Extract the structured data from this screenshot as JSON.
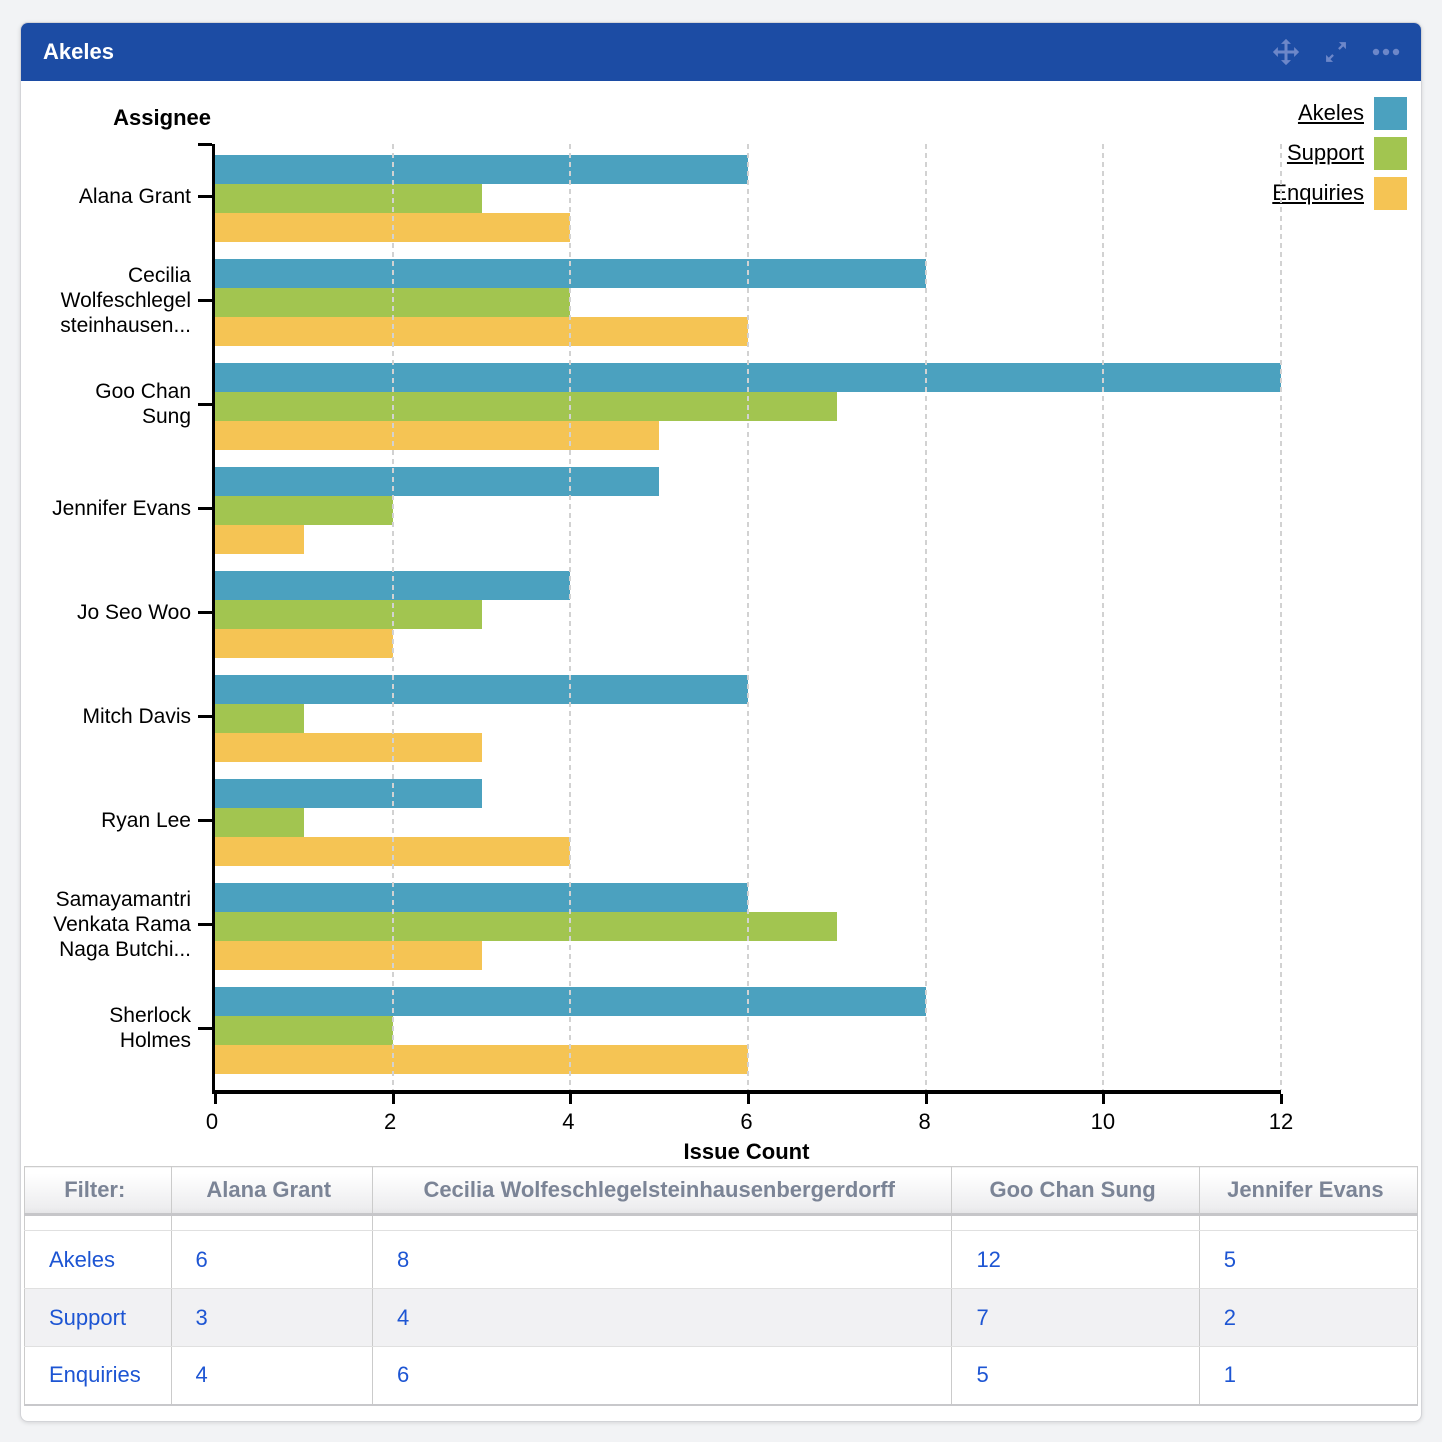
{
  "gadget": {
    "title": "Akeles",
    "header_color": "#1c4ca4",
    "toolbar_icons": [
      "move-icon",
      "expand-icon",
      "ellipsis-icon"
    ]
  },
  "chart_data": {
    "type": "bar",
    "orientation": "horizontal",
    "title": "Akeles",
    "ylabel": "Assignee",
    "xlabel": "Issue Count",
    "xlim": [
      0,
      12
    ],
    "xticks": [
      0,
      2,
      4,
      6,
      8,
      10,
      12
    ],
    "grid": true,
    "legend_position": "top-right",
    "categories": [
      "Alana Grant",
      "Cecilia Wolfeschlegel steinhausen...",
      "Goo Chan Sung",
      "Jennifer Evans",
      "Jo Seo Woo",
      "Mitch Davis",
      "Ryan Lee",
      "Samayamantri Venkata Rama Naga Butchi...",
      "Sherlock Holmes"
    ],
    "category_lines": [
      [
        "Alana Grant"
      ],
      [
        "Cecilia",
        "Wolfeschlegel",
        "steinhausen..."
      ],
      [
        "Goo Chan",
        "Sung"
      ],
      [
        "Jennifer Evans"
      ],
      [
        "Jo Seo Woo"
      ],
      [
        "Mitch Davis"
      ],
      [
        "Ryan Lee"
      ],
      [
        "Samayamantri",
        "Venkata Rama",
        "Naga Butchi..."
      ],
      [
        "Sherlock",
        "Holmes"
      ]
    ],
    "series": [
      {
        "name": "Akeles",
        "color": "#4ba1bf",
        "values": [
          6,
          8,
          12,
          5,
          4,
          6,
          3,
          6,
          8
        ]
      },
      {
        "name": "Support",
        "color": "#a2c550",
        "values": [
          3,
          4,
          7,
          2,
          3,
          1,
          1,
          7,
          2
        ]
      },
      {
        "name": "Enquiries",
        "color": "#f5c454",
        "values": [
          4,
          6,
          5,
          1,
          2,
          3,
          4,
          3,
          6
        ]
      }
    ]
  },
  "table": {
    "filter_label": "Filter:",
    "columns": [
      "Alana Grant",
      "Cecilia Wolfeschlegelsteinhausenbergerdorff",
      "Goo Chan Sung",
      "Jennifer Evans"
    ],
    "rows": [
      {
        "label": "Akeles",
        "values": [
          "6",
          "8",
          "12",
          "5"
        ]
      },
      {
        "label": "Support",
        "values": [
          "3",
          "4",
          "7",
          "2"
        ]
      },
      {
        "label": "Enquiries",
        "values": [
          "4",
          "6",
          "5",
          "1"
        ]
      }
    ]
  },
  "colors": {
    "link_blue": "#1d55d3",
    "table_header_text": "#7b8496",
    "gridline": "#d2d2d2",
    "row_stripe": "#f1f1f3"
  }
}
